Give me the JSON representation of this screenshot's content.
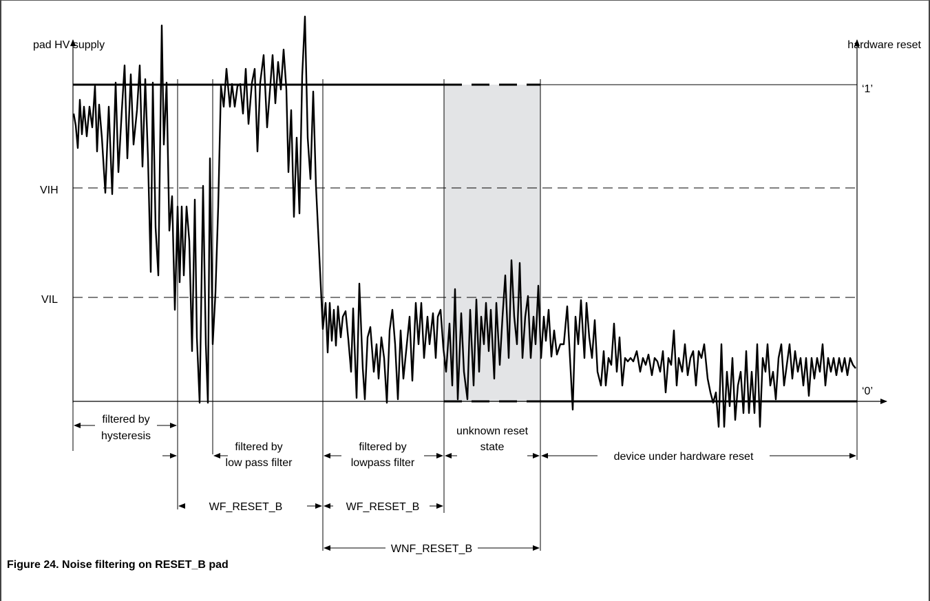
{
  "figure": {
    "caption": "Figure 24.  Noise filtering on RESET_B pad"
  },
  "axes": {
    "left_label": "pad HV supply",
    "right_label": "hardware reset",
    "level_high": "‘1’",
    "level_low": "‘0’",
    "vih_label": "VIH",
    "vil_label": "VIL"
  },
  "annotations": {
    "hysteresis_1": "filtered by",
    "hysteresis_2": "hysteresis",
    "lowpass1_1": "filtered by",
    "lowpass1_2": "low pass filter",
    "lowpass2_1": "filtered by",
    "lowpass2_2": "lowpass filter",
    "unknown_1": "unknown reset",
    "unknown_2": "state",
    "device_reset": "device under hardware reset",
    "wf1": "WF_RESET_B",
    "wf2": "WF_RESET_B",
    "wnf": "WNF_RESET_B"
  },
  "colors": {
    "line": "#000000",
    "shade": "#e3e4e6"
  }
}
